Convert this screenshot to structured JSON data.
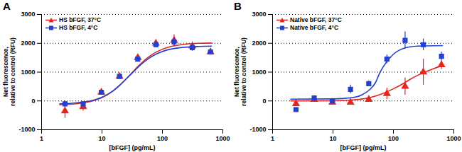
{
  "chart_data": [
    {
      "type": "line",
      "panel": "A",
      "x_label": "[bFGF] (pg/mL)",
      "y_label": "Net fluorescence,\nrelative to control (RFU)",
      "log": "x",
      "grid": true,
      "legend": "top-left",
      "xlim": [
        1,
        1000
      ],
      "xticks": [
        1,
        10,
        100,
        1000
      ],
      "ylim": [
        -1000,
        3000
      ],
      "yticks": [
        -1000,
        0,
        1000,
        2000,
        3000
      ],
      "x": [
        2.44,
        4.88,
        9.77,
        19.5,
        39.1,
        78.1,
        156,
        312.5,
        625
      ],
      "series": [
        {
          "name": "HS bFGF, 37°C",
          "color": "#e3261f",
          "marker": "triangle",
          "values": [
            -350,
            -200,
            300,
            850,
            1500,
            2000,
            2100,
            1900,
            1700
          ],
          "error": [
            250,
            150,
            80,
            60,
            80,
            100,
            200,
            150,
            100
          ],
          "fit": {
            "x": [
              2,
              4,
              7,
              10,
              15,
              20,
              30,
              40,
              60,
              80,
              120,
              200,
              400,
              650
            ],
            "values": [
              -133,
              -94,
              -2,
              114,
              334,
              557,
              935,
              1210,
              1536,
              1703,
              1855,
              1950,
              2000,
              2010
            ]
          }
        },
        {
          "name": "HS bFGF, 4°C",
          "color": "#2340d0",
          "marker": "square",
          "values": [
            -100,
            -100,
            300,
            850,
            1450,
            1950,
            2050,
            1850,
            1700
          ],
          "error": [
            100,
            80,
            60,
            60,
            80,
            100,
            150,
            120,
            80
          ],
          "fit": {
            "x": [
              2,
              4,
              7,
              10,
              15,
              20,
              30,
              40,
              60,
              80,
              120,
              200,
              400,
              650
            ],
            "values": [
              -100,
              -60,
              20,
              130,
              340,
              560,
              920,
              1180,
              1480,
              1630,
              1770,
              1850,
              1890,
              1900
            ]
          }
        }
      ]
    },
    {
      "type": "line",
      "panel": "B",
      "x_label": "[bFGF] (pg/mL)",
      "y_label": "Net fluorescence,\nrelative to control (RFU)",
      "log": "x",
      "grid": true,
      "legend": "top-left",
      "xlim": [
        1,
        1000
      ],
      "xticks": [
        1,
        10,
        100,
        1000
      ],
      "ylim": [
        -1000,
        3000
      ],
      "yticks": [
        -1000,
        0,
        1000,
        2000,
        3000
      ],
      "x": [
        2.44,
        4.88,
        9.77,
        19.5,
        39.1,
        78.1,
        156,
        312.5,
        625
      ],
      "series": [
        {
          "name": "Native bFGF, 37°C",
          "color": "#e3261f",
          "marker": "triangle",
          "values": [
            -100,
            50,
            -50,
            -50,
            50,
            250,
            500,
            1000,
            1250
          ],
          "error": [
            50,
            50,
            60,
            60,
            80,
            200,
            300,
            450,
            150
          ],
          "fit": {
            "x": [
              2,
              10,
              20,
              40,
              60,
              100,
              150,
              200,
              300,
              450,
              650
            ],
            "values": [
              0,
              5,
              30,
              110,
              220,
              420,
              620,
              780,
              960,
              1110,
              1230
            ]
          }
        },
        {
          "name": "Native bFGF, 4°C",
          "color": "#2340d0",
          "marker": "square",
          "values": [
            -300,
            100,
            0,
            400,
            600,
            1450,
            2100,
            1950,
            1550
          ],
          "error": [
            50,
            50,
            80,
            150,
            100,
            150,
            300,
            200,
            150
          ],
          "fit": {
            "x": [
              2,
              10,
              20,
              30,
              40,
              50,
              60,
              80,
              100,
              150,
              250,
              650
            ],
            "values": [
              60,
              70,
              110,
              210,
              380,
              620,
              990,
              1400,
              1620,
              1830,
              1900,
              1920
            ]
          }
        }
      ]
    }
  ]
}
